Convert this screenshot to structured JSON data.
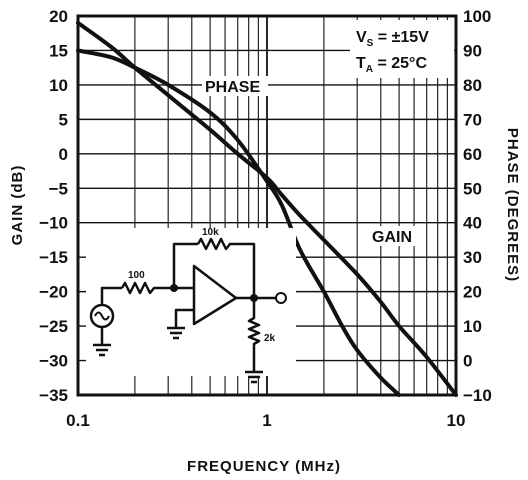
{
  "chart_data": {
    "type": "line",
    "xlabel": "FREQUENCY (MHz)",
    "ylabel": "GAIN (dB)",
    "y2label": "PHASE (DEGREES)",
    "xscale": "log",
    "xlim": [
      0.1,
      10
    ],
    "ylim": [
      -35,
      20
    ],
    "y2lim": [
      -10,
      100
    ],
    "grid": true,
    "x_ticks": [
      "0.1",
      "1",
      "10"
    ],
    "y_ticks": [
      "20",
      "15",
      "10",
      "5",
      "0",
      "−5",
      "−10",
      "−15",
      "−20",
      "−25",
      "−30",
      "−35"
    ],
    "y2_ticks": [
      "100",
      "90",
      "80",
      "70",
      "60",
      "50",
      "40",
      "30",
      "20",
      "10",
      "0",
      "−10"
    ],
    "conditions": {
      "vs_main": "V",
      "vs_sub": "S",
      "vs_value": " = ±15V",
      "ta_main": "T",
      "ta_sub": "A",
      "ta_value": " = 25°C"
    },
    "series": [
      {
        "name": "GAIN",
        "axis": "left",
        "x": [
          0.1,
          0.15,
          0.2,
          0.3,
          0.5,
          0.7,
          1.0,
          1.2,
          1.5,
          2.0,
          3.0,
          4.0,
          5.0,
          7.0,
          10.0
        ],
        "y": [
          19.0,
          15.5,
          12.5,
          8.5,
          3.5,
          0.0,
          -3.5,
          -6.0,
          -9.0,
          -12.5,
          -17.5,
          -21.5,
          -25.0,
          -29.5,
          -35.0
        ]
      },
      {
        "name": "PHASE",
        "axis": "right",
        "x": [
          0.1,
          0.15,
          0.2,
          0.3,
          0.5,
          0.7,
          1.0,
          1.2,
          1.5,
          2.0,
          2.5,
          3.0,
          4.0,
          5.0
        ],
        "y": [
          90.0,
          88.0,
          85.0,
          80.0,
          72.0,
          64.0,
          52.0,
          45.0,
          32.0,
          20.0,
          10.0,
          3.0,
          -5.0,
          -10.0
        ]
      }
    ],
    "series_labels": [
      "PHASE",
      "GAIN"
    ],
    "schematic": {
      "r_input": "100",
      "r_feedback": "10k",
      "r_load": "2k"
    }
  }
}
